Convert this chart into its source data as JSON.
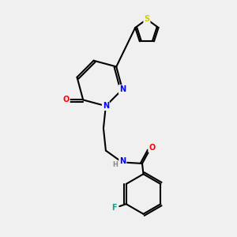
{
  "background_color": "#f0f0f0",
  "bond_color": "#000000",
  "atom_colors": {
    "N": "#0000ff",
    "O": "#ff0000",
    "S": "#cccc00",
    "F": "#00aa88",
    "H": "#888888",
    "C": "#000000"
  },
  "title": "",
  "figsize": [
    3.0,
    3.0
  ],
  "dpi": 100
}
